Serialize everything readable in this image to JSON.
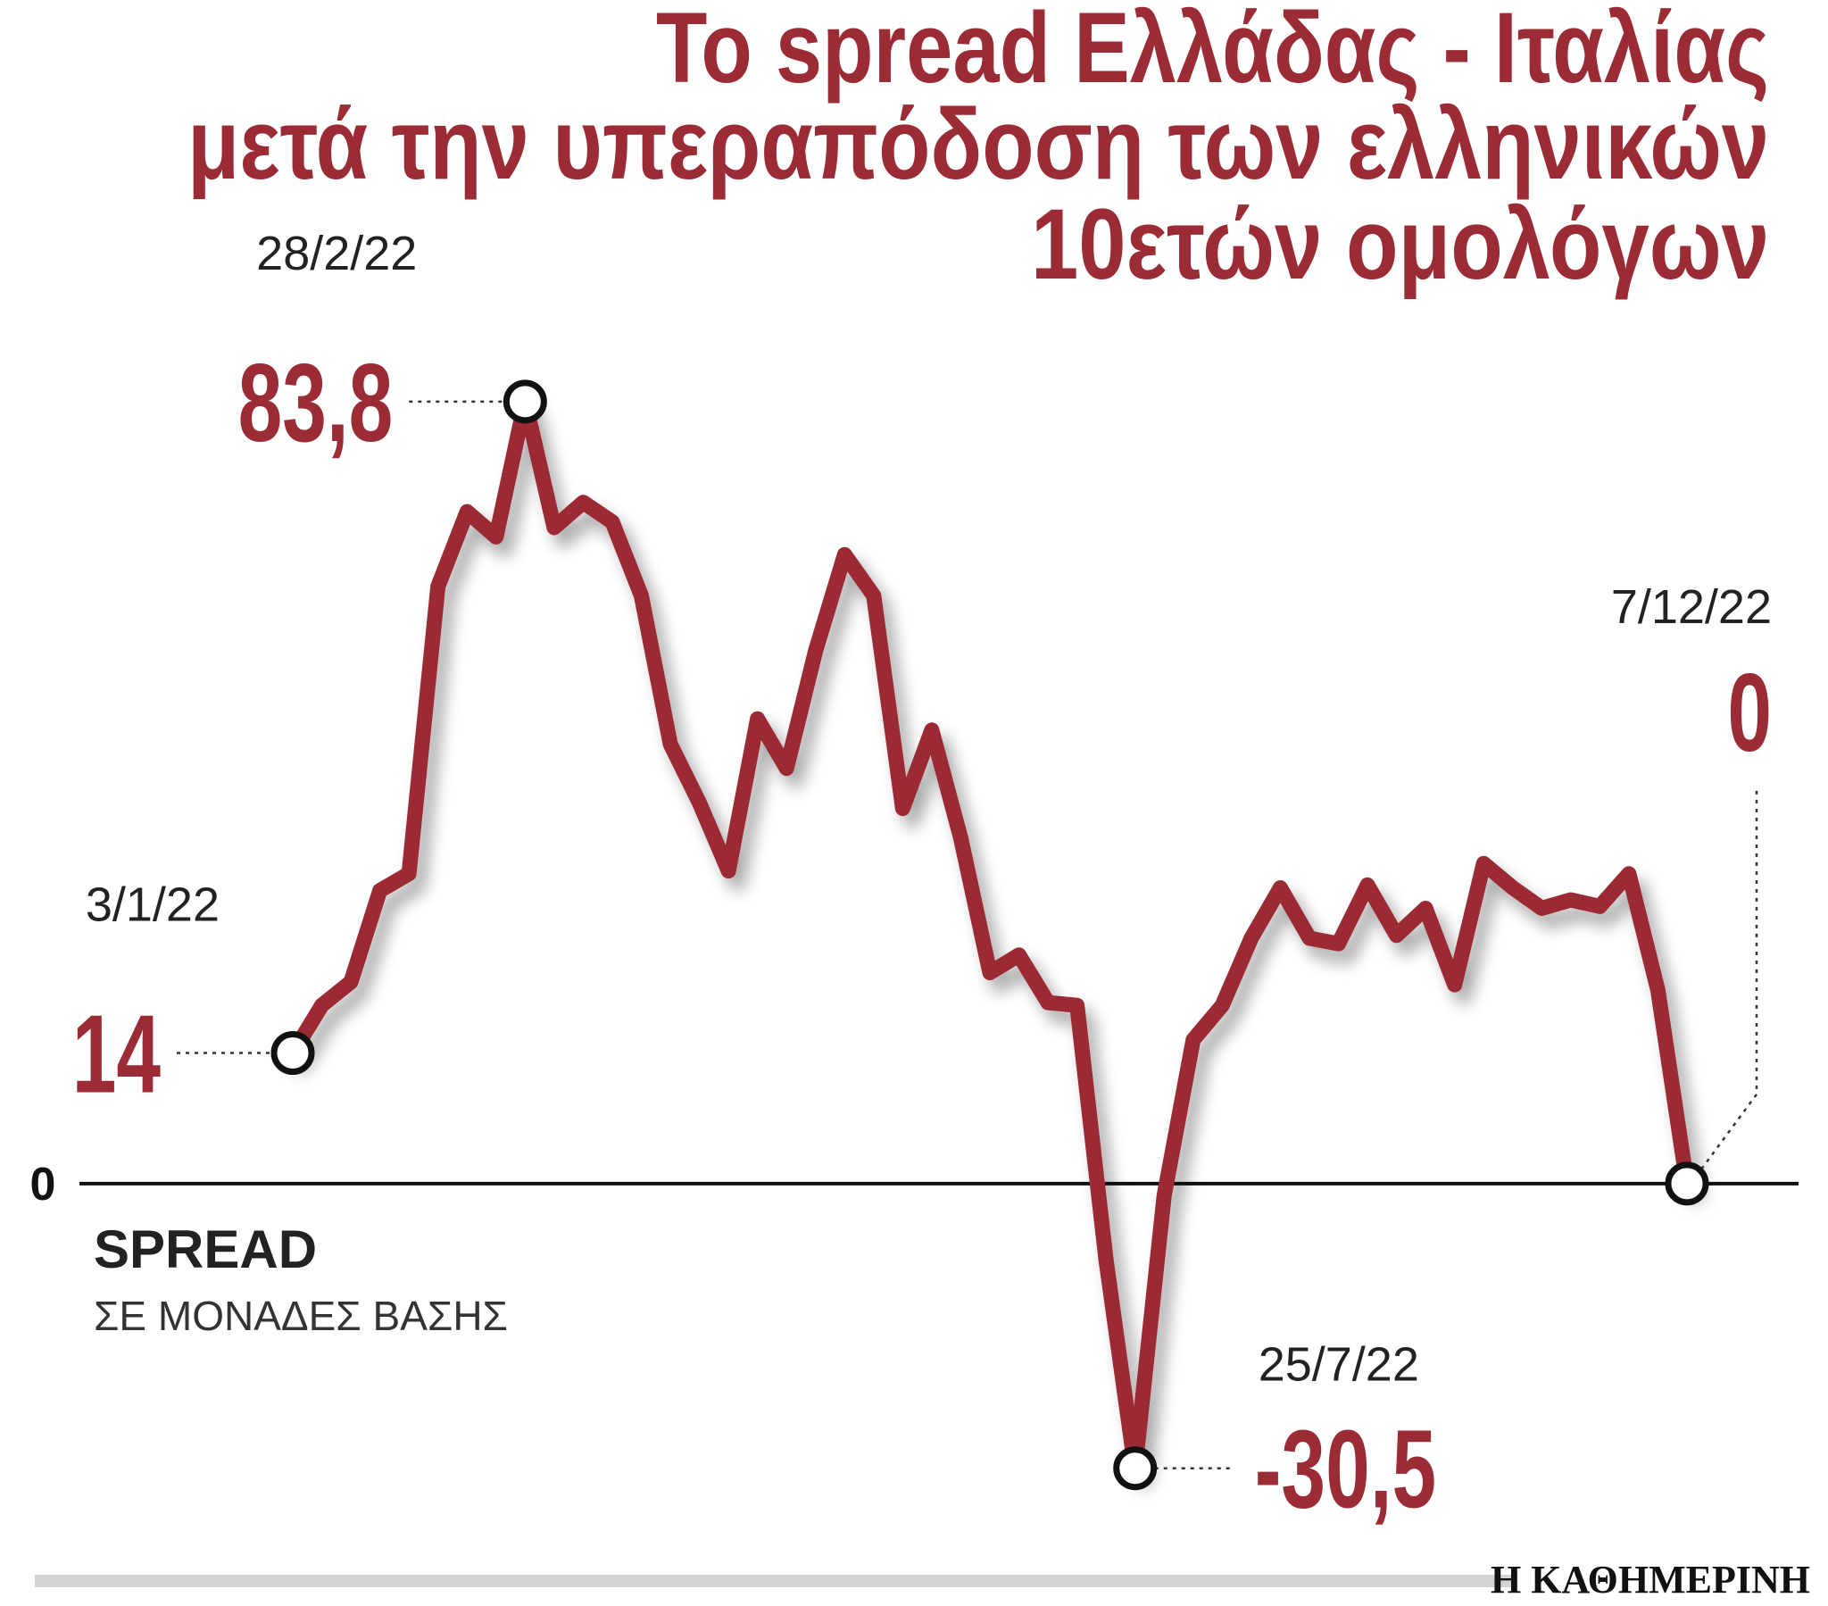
{
  "chart_data": {
    "type": "line",
    "title": [
      "Το spread Ελλάδας - Ιταλίας",
      "μετά την υπεραπόδοση των ελληνικών",
      "10ετών ομολόγων"
    ],
    "ylabel": "SPREAD",
    "ylabel_sub": "ΣΕ ΜΟΝΑΔΕΣ ΒΑΣΗΣ",
    "source": "Η ΚΑΘΗΜΕΡΙΝΗ",
    "categories": [
      "3/1/22",
      null,
      null,
      null,
      null,
      null,
      null,
      null,
      "28/2/22",
      null,
      null,
      null,
      null,
      null,
      null,
      null,
      null,
      null,
      null,
      null,
      null,
      null,
      null,
      null,
      null,
      null,
      null,
      null,
      null,
      "25/7/22",
      null,
      null,
      null,
      null,
      null,
      null,
      null,
      null,
      null,
      null,
      null,
      null,
      null,
      null,
      null,
      null,
      null,
      null,
      "7/12/22"
    ],
    "values": [
      14,
      19.1,
      21.6,
      31.4,
      33.2,
      64.0,
      72.0,
      69.3,
      83.8,
      70.3,
      73.0,
      70.9,
      63.0,
      47.1,
      40.8,
      33.5,
      49.8,
      44.5,
      57.1,
      67.4,
      63.0,
      40.2,
      48.6,
      37.0,
      22.6,
      24.5,
      19.4,
      19.1,
      -8.2,
      -30.5,
      -1.3,
      15.4,
      19.1,
      26.3,
      31.7,
      26.3,
      25.7,
      32.0,
      26.6,
      29.5,
      21.3,
      34.3,
      31.7,
      29.5,
      30.4,
      29.7,
      33.2,
      20.7,
      0
    ],
    "value_labels": [
      "14",
      null,
      null,
      null,
      null,
      null,
      null,
      null,
      "83,8",
      null,
      null,
      null,
      null,
      null,
      null,
      null,
      null,
      null,
      null,
      null,
      null,
      null,
      null,
      null,
      null,
      null,
      null,
      null,
      null,
      "-30,5",
      null,
      null,
      null,
      null,
      null,
      null,
      null,
      null,
      null,
      null,
      null,
      null,
      null,
      null,
      null,
      null,
      null,
      null,
      "0"
    ],
    "color": "#9b2b35",
    "ylim": [
      -40,
      90
    ],
    "yticks": [
      0
    ]
  }
}
